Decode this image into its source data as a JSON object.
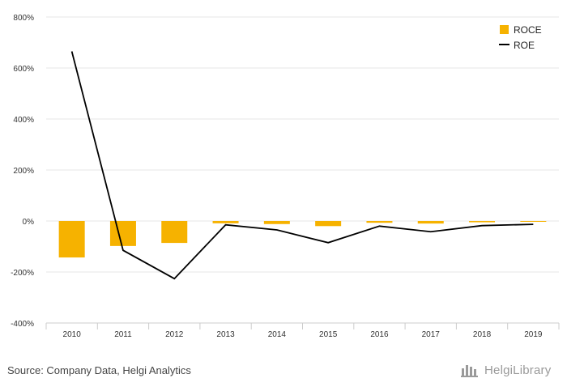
{
  "chart_data": {
    "type": "bar",
    "categories": [
      "2010",
      "2011",
      "2012",
      "2013",
      "2014",
      "2015",
      "2016",
      "2017",
      "2018",
      "2019"
    ],
    "series": [
      {
        "name": "ROCE",
        "type": "bar",
        "color": "#f6b200",
        "values": [
          -143,
          -98,
          -86,
          -9,
          -12,
          -20,
          -7,
          -10,
          -5,
          -3
        ]
      },
      {
        "name": "ROE",
        "type": "line",
        "color": "#000000",
        "values": [
          665,
          -115,
          -226,
          -15,
          -35,
          -85,
          -20,
          -42,
          -18,
          -13
        ]
      }
    ],
    "ylim": [
      -400,
      800
    ],
    "yticks": [
      -400,
      -200,
      0,
      200,
      400,
      600,
      800
    ],
    "ytick_labels": [
      "-400%",
      "-200%",
      "0%",
      "200%",
      "400%",
      "600%",
      "800%"
    ],
    "grid": true,
    "legend_position": "top-right",
    "title": "",
    "xlabel": "",
    "ylabel": ""
  },
  "source": "Source: Company Data, Helgi Analytics",
  "brand": "HelgiLibrary"
}
